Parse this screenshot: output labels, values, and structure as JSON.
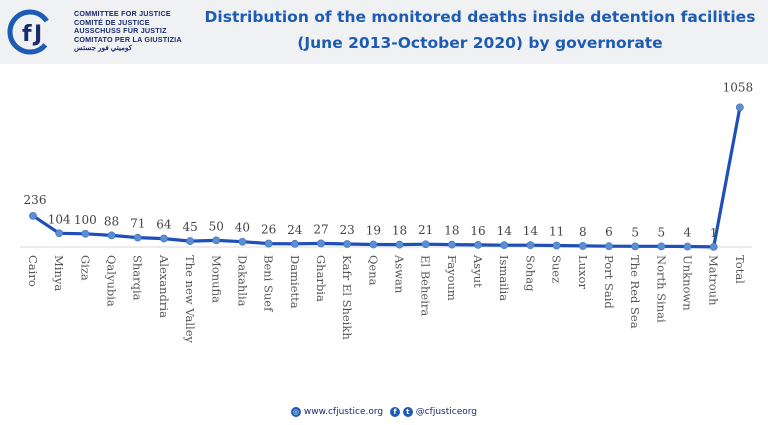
{
  "logo": {
    "icon_name": "cfj-logo-icon",
    "lines": [
      "COMMITTEE FOR JUSTICE",
      "COMITÉ DE JUSTICE",
      "AUSSCHUSS FÜR JUSTIZ",
      "COMITATO PER LA GIUSTIZIA",
      "كوميتي فور جستس"
    ]
  },
  "chart_data": {
    "type": "line",
    "title_lines": [
      "Distribution of the monitored deaths inside detention facilities",
      "(June 2013-October 2020) by governorate"
    ],
    "categories": [
      "Cairo",
      "Minya",
      "Giza",
      "Qalyubia",
      "Sharqia",
      "Alexandria",
      "The new Valley",
      "Monufia",
      "Dakahlia",
      "Beni Suef",
      "Damietta",
      "Gharbia",
      "Kafr El Sheikh",
      "Qena",
      "Aswan",
      "El Beheira",
      "Fayoum",
      "Asyut",
      "Ismailia",
      "Sohag",
      "Suez",
      "Luxor",
      "Port Said",
      "The Red Sea",
      "North Sinai",
      "Unknown",
      "Matrouh",
      "Total"
    ],
    "values": [
      236,
      104,
      100,
      88,
      71,
      64,
      45,
      50,
      40,
      26,
      24,
      27,
      23,
      19,
      18,
      21,
      18,
      16,
      14,
      14,
      11,
      8,
      6,
      5,
      5,
      4,
      1,
      1058
    ],
    "labels": [
      "236",
      "104",
      "100",
      "88",
      "71",
      "64",
      "45",
      "50",
      "40",
      "26",
      "24",
      "27",
      "23",
      "19",
      "18",
      "21",
      "18",
      "16",
      "14",
      "14",
      "11",
      "8",
      "6",
      "5",
      "5",
      "4",
      "1",
      "1058"
    ],
    "ylim": [
      0,
      1250
    ],
    "grid": false,
    "legend": "none",
    "line_color": "#1f4fb8",
    "marker_color": "#5b8fd0",
    "axis_color": "#d9d9d9"
  },
  "footer": {
    "globe_icon": "globe-icon",
    "website": "www.cfjustice.org",
    "facebook_icon": "facebook-icon",
    "twitter_icon": "twitter-icon",
    "handle": "@cfjusticeorg"
  }
}
